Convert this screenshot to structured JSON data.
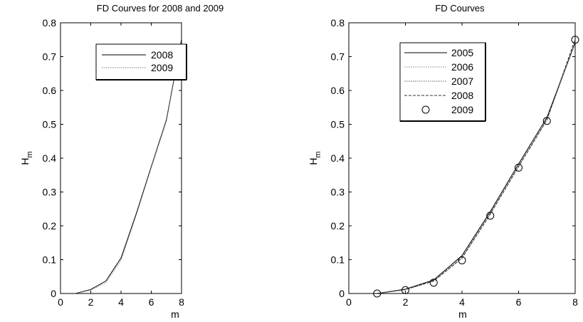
{
  "chart_data": [
    {
      "type": "line",
      "title": "FD Courves for 2008 and 2009",
      "xlabel": "m",
      "ylabel": "H",
      "ylabel_sub": "m",
      "xlim": [
        0,
        8
      ],
      "ylim": [
        0,
        0.8
      ],
      "xticks": [
        "0",
        "2",
        "4",
        "6",
        "8"
      ],
      "yticks": [
        "0",
        "0.1",
        "0.2",
        "0.3",
        "0.4",
        "0.5",
        "0.6",
        "0.7",
        "0.8"
      ],
      "grid": false,
      "legend_position": "top-center",
      "series": [
        {
          "name": "2008",
          "color": "#000000",
          "dash": "",
          "x": [
            1,
            2,
            3,
            4,
            5,
            6,
            7,
            8
          ],
          "y": [
            0,
            0.012,
            0.037,
            0.105,
            0.235,
            0.375,
            0.513,
            0.752
          ]
        },
        {
          "name": "2009",
          "color": "#7a7a7a",
          "dash": "1.5,1.5",
          "x": [
            1,
            2,
            3,
            4,
            5,
            6,
            7,
            8
          ],
          "y": [
            0,
            0.01,
            0.032,
            0.098,
            0.23,
            0.372,
            0.51,
            0.75
          ]
        }
      ]
    },
    {
      "type": "line",
      "title": "FD Courves",
      "xlabel": "m",
      "ylabel": "H",
      "ylabel_sub": "m",
      "xlim": [
        0,
        8
      ],
      "ylim": [
        0,
        0.8
      ],
      "xticks": [
        "0",
        "2",
        "4",
        "6",
        "8"
      ],
      "yticks": [
        "0",
        "0.1",
        "0.2",
        "0.3",
        "0.4",
        "0.5",
        "0.6",
        "0.7",
        "0.8"
      ],
      "grid": false,
      "legend_position": "top-left",
      "series": [
        {
          "name": "2005",
          "color": "#000000",
          "dash": "",
          "marker": "none",
          "x": [
            1,
            2,
            3,
            4,
            5,
            6,
            7,
            8
          ],
          "y": [
            0,
            0.013,
            0.04,
            0.112,
            0.242,
            0.383,
            0.52,
            0.742
          ]
        },
        {
          "name": "2006",
          "color": "#8a8a8a",
          "dash": "1.5,1.5",
          "marker": "none",
          "x": [
            1,
            2,
            3,
            4,
            5,
            6,
            7,
            8
          ],
          "y": [
            0,
            0.012,
            0.038,
            0.108,
            0.238,
            0.378,
            0.515,
            0.738
          ]
        },
        {
          "name": "2007",
          "color": "#5a5a5a",
          "dash": "1.5,1.5",
          "marker": "none",
          "x": [
            1,
            2,
            3,
            4,
            5,
            6,
            7,
            8
          ],
          "y": [
            0,
            0.011,
            0.036,
            0.104,
            0.234,
            0.375,
            0.512,
            0.745
          ]
        },
        {
          "name": "2008",
          "color": "#333333",
          "dash": "4,2",
          "marker": "none",
          "x": [
            1,
            2,
            3,
            4,
            5,
            6,
            7,
            8
          ],
          "y": [
            0,
            0.012,
            0.037,
            0.105,
            0.235,
            0.375,
            0.513,
            0.752
          ]
        },
        {
          "name": "2009",
          "color": "#000000",
          "dash": "",
          "marker": "circle",
          "line": false,
          "x": [
            1,
            2,
            3,
            4,
            5,
            6,
            7,
            8
          ],
          "y": [
            0,
            0.01,
            0.032,
            0.098,
            0.23,
            0.372,
            0.51,
            0.75
          ]
        }
      ]
    }
  ]
}
